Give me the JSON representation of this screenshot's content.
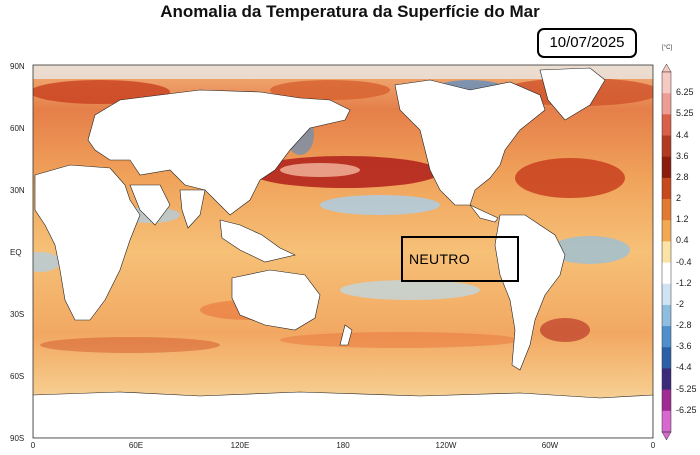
{
  "title": "Anomalia da Temperatura da Superfície do Mar",
  "date": "10/07/2025",
  "label_box": "NEUTRO",
  "colorbar": {
    "unit": "[°C]",
    "ticks": [
      "6.25",
      "5.25",
      "4.4",
      "3.6",
      "2.8",
      "2",
      "1.2",
      "0.4",
      "-0.4",
      "-1.2",
      "-2",
      "-2.8",
      "-3.6",
      "-4.4",
      "-5.25",
      "-6.25"
    ],
    "colors": [
      "#f7c9c3",
      "#ec9e94",
      "#d95f4a",
      "#b23a22",
      "#8b1d0f",
      "#c64a1e",
      "#e27a34",
      "#f2a954",
      "#fbe3a8",
      "#ffffff",
      "#cfe3f2",
      "#8fbde0",
      "#4f8fcc",
      "#2b5fa6",
      "#3b2a7a",
      "#a12b94",
      "#d668cf"
    ]
  },
  "y_axis_labels": [
    "90N",
    "60N",
    "30N",
    "EQ",
    "30S",
    "60S",
    "90S"
  ],
  "x_axis_labels": [
    "0",
    "60E",
    "120E",
    "180",
    "120W",
    "60W",
    "0"
  ],
  "colors": {
    "warm_anomaly": "#e8733a",
    "strong_warm": "#b3261e",
    "cool_anomaly": "#8ec1e6",
    "land": "#ffffff"
  }
}
